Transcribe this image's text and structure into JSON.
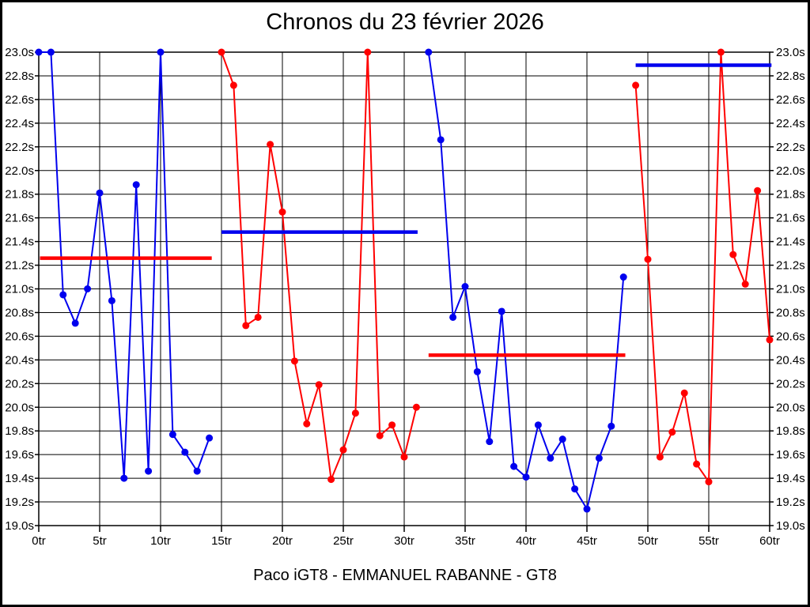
{
  "title": "Chronos du 23 février 2026",
  "caption": "Paco iGT8 - EMMANUEL RABANNE - GT8",
  "colors": {
    "stint_blue": "#0000ee",
    "stint_red": "#ff0000",
    "grid": "#000000",
    "background": "#ffffff"
  },
  "chart_data": {
    "type": "line",
    "title": "Chronos du 23 février 2026",
    "subtitle": "Paco iGT8 - EMMANUEL RABANNE - GT8",
    "x_unit": "tr",
    "y_unit": "s",
    "xlim": [
      0,
      60
    ],
    "ylim": [
      19.0,
      23.0
    ],
    "grid": true,
    "legend": "none",
    "x_ticks": [
      "0tr",
      "5tr",
      "10tr",
      "15tr",
      "20tr",
      "25tr",
      "30tr",
      "35tr",
      "40tr",
      "45tr",
      "50tr",
      "55tr",
      "60tr"
    ],
    "y_ticks": [
      "23.0s",
      "22.8s",
      "22.6s",
      "22.4s",
      "22.2s",
      "22.0s",
      "21.8s",
      "21.6s",
      "21.4s",
      "21.2s",
      "21.0s",
      "20.8s",
      "20.6s",
      "20.4s",
      "20.2s",
      "20.0s",
      "19.8s",
      "19.6s",
      "19.4s",
      "19.2s",
      "19.0s"
    ],
    "series": [
      {
        "name": "stint-1-blue",
        "color": "#0000ee",
        "start_lap": 0,
        "values": [
          23.0,
          23.0,
          20.95,
          20.71,
          21.0,
          21.81,
          20.9,
          19.4,
          21.88,
          19.46,
          23.0,
          19.77,
          19.62,
          19.46,
          19.74
        ]
      },
      {
        "name": "stint-2-red",
        "color": "#ff0000",
        "start_lap": 15,
        "values": [
          23.0,
          22.72,
          20.69,
          20.76,
          22.22,
          21.65,
          20.39,
          19.86,
          20.19,
          19.39,
          19.64,
          19.95,
          23.0,
          19.76,
          19.85,
          19.58,
          20.0
        ]
      },
      {
        "name": "stint-3-blue",
        "color": "#0000ee",
        "start_lap": 32,
        "values": [
          23.0,
          22.26,
          20.76,
          21.02,
          20.3,
          19.71,
          20.81,
          19.5,
          19.41,
          19.85,
          19.57,
          19.73,
          19.31,
          19.14,
          19.57,
          19.84,
          21.1
        ]
      },
      {
        "name": "stint-4-red",
        "color": "#ff0000",
        "start_lap": 49,
        "values": [
          22.72,
          21.25,
          19.58,
          19.79,
          20.12,
          19.52,
          19.37,
          23.0,
          21.29,
          21.04,
          21.83,
          20.57
        ]
      }
    ],
    "average_lines": [
      {
        "color": "#ff0000",
        "x_start": 0.1,
        "x_end": 14.2,
        "y": 21.26
      },
      {
        "color": "#0000ee",
        "x_start": 15.0,
        "x_end": 31.1,
        "y": 21.48
      },
      {
        "color": "#ff0000",
        "x_start": 32.0,
        "x_end": 48.15,
        "y": 20.44
      },
      {
        "color": "#0000ee",
        "x_start": 49.0,
        "x_end": 60.15,
        "y": 22.89
      }
    ]
  }
}
